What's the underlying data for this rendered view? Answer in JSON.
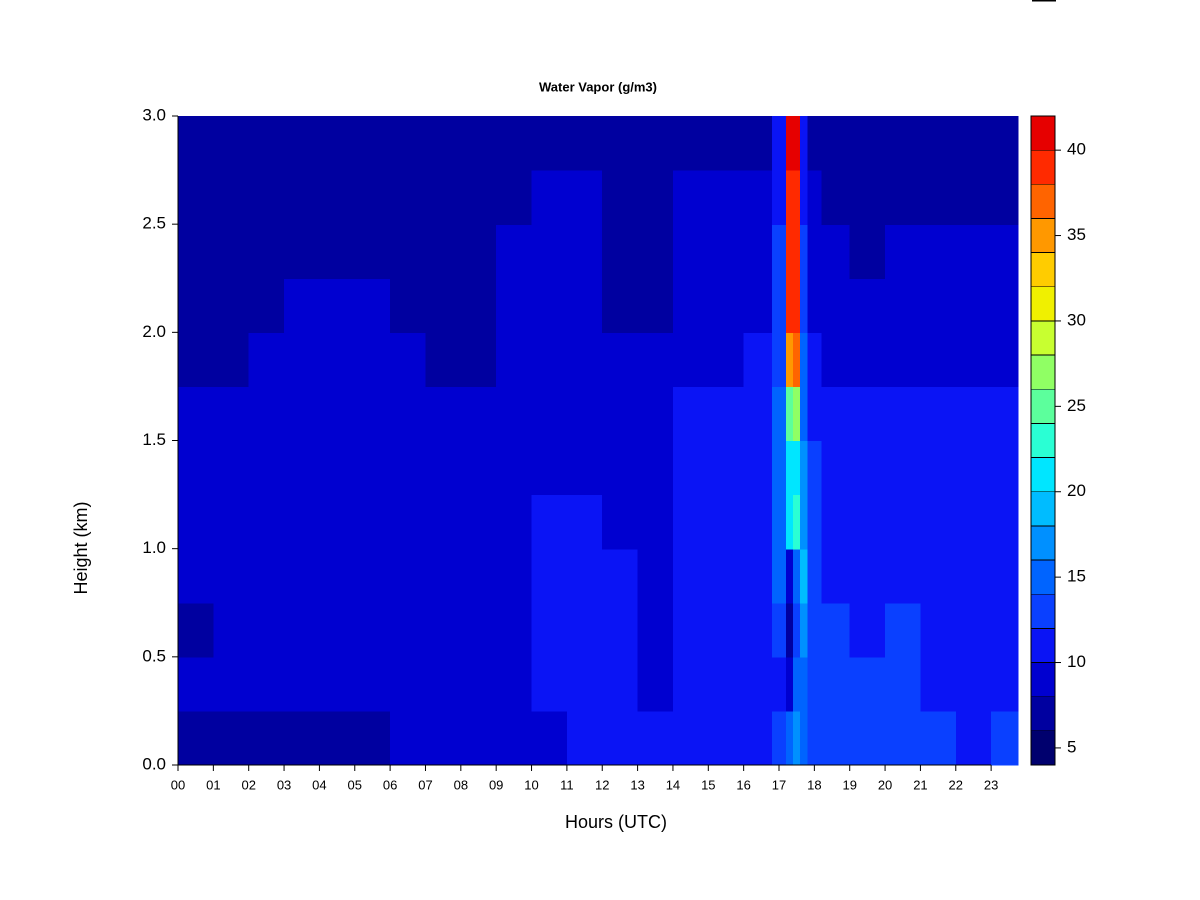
{
  "chart_data": {
    "type": "filled-contour",
    "title": "Water Vapor (g/m3)",
    "x_label": "Hours (UTC)",
    "y_label": "Height (km)",
    "xlim": [
      0,
      23.76
    ],
    "ylim": [
      0,
      3.0
    ],
    "xticks": [
      {
        "value": 0,
        "label": "00"
      },
      {
        "value": 1,
        "label": "01"
      },
      {
        "value": 2,
        "label": "02"
      },
      {
        "value": 3,
        "label": "03"
      },
      {
        "value": 4,
        "label": "04"
      },
      {
        "value": 5,
        "label": "05"
      },
      {
        "value": 6,
        "label": "06"
      },
      {
        "value": 7,
        "label": "07"
      },
      {
        "value": 8,
        "label": "08"
      },
      {
        "value": 9,
        "label": "09"
      },
      {
        "value": 10,
        "label": "10"
      },
      {
        "value": 11,
        "label": "11"
      },
      {
        "value": 12,
        "label": "12"
      },
      {
        "value": 13,
        "label": "13"
      },
      {
        "value": 14,
        "label": "14"
      },
      {
        "value": 15,
        "label": "15"
      },
      {
        "value": 16,
        "label": "16"
      },
      {
        "value": 17,
        "label": "17"
      },
      {
        "value": 18,
        "label": "18"
      },
      {
        "value": 19,
        "label": "19"
      },
      {
        "value": 20,
        "label": "20"
      },
      {
        "value": 21,
        "label": "21"
      },
      {
        "value": 22,
        "label": "22"
      },
      {
        "value": 23,
        "label": "23"
      }
    ],
    "yticks": [
      {
        "value": 0,
        "label": "0.0"
      },
      {
        "value": 0.5,
        "label": "0.5"
      },
      {
        "value": 1,
        "label": "1.0"
      },
      {
        "value": 1.5,
        "label": "1.5"
      },
      {
        "value": 2,
        "label": "2.0"
      },
      {
        "value": 2.5,
        "label": "2.5"
      },
      {
        "value": 3,
        "label": "3.0"
      }
    ],
    "xbins": [
      0,
      1,
      2,
      3,
      4,
      5,
      6,
      7,
      8,
      9,
      10,
      11,
      12,
      13,
      14,
      15,
      16,
      16.8,
      17.2,
      17.4,
      17.6,
      17.8,
      18.2,
      19,
      20,
      21,
      22,
      23,
      23.76
    ],
    "ybins": [
      0,
      0.25,
      0.5,
      0.75,
      1.0,
      1.25,
      1.5,
      1.75,
      2.0,
      2.25,
      2.5,
      2.75,
      3.0
    ],
    "z": [
      [
        7,
        7,
        7,
        7,
        7,
        7,
        9,
        9,
        9,
        9,
        9,
        11,
        11,
        11,
        11,
        11,
        11,
        13,
        15,
        16,
        14,
        13,
        12,
        12,
        12,
        12,
        11,
        12
      ],
      [
        8,
        8,
        9,
        9,
        9,
        9,
        9,
        9,
        9,
        9,
        11,
        11,
        11,
        9,
        11,
        11,
        11,
        11,
        9,
        14,
        15,
        12,
        12,
        12,
        12,
        11,
        10,
        11
      ],
      [
        7,
        8,
        9,
        9,
        9,
        9,
        9,
        9,
        9,
        9,
        11,
        11,
        11,
        9,
        11,
        11,
        11,
        13,
        7,
        12,
        16,
        12,
        12,
        11,
        12,
        11,
        10,
        11
      ],
      [
        9,
        9,
        9,
        9,
        9,
        9,
        9,
        9,
        9,
        9,
        11,
        11,
        11,
        9,
        11,
        11,
        11,
        14,
        8,
        15,
        18,
        13,
        11,
        11,
        11,
        11,
        10,
        11
      ],
      [
        9,
        9,
        9,
        9,
        9,
        9,
        9,
        9,
        9,
        9,
        10,
        10,
        9,
        9,
        10,
        10,
        11,
        15,
        20,
        22,
        17,
        12,
        10,
        11,
        10,
        10,
        10,
        10
      ],
      [
        9,
        9,
        9,
        9,
        9,
        9,
        9,
        9,
        9,
        9,
        9,
        9,
        9,
        9,
        10,
        10,
        11,
        14,
        20,
        21,
        16,
        12,
        10,
        10,
        10,
        10,
        10,
        10
      ],
      [
        9,
        9,
        9,
        9,
        9,
        9,
        9,
        9,
        9,
        9,
        9,
        9,
        9,
        9,
        10,
        10,
        10,
        14,
        25,
        27,
        15,
        11,
        10,
        10,
        10,
        10,
        10,
        10
      ],
      [
        7,
        7,
        8,
        9,
        9,
        9,
        9,
        7,
        7,
        8,
        9,
        9,
        8,
        8,
        9,
        9,
        10,
        13,
        34,
        36,
        14,
        10,
        9,
        9,
        9,
        9,
        9,
        9
      ],
      [
        7,
        7,
        7,
        8,
        8,
        8,
        7,
        7,
        7,
        8,
        9,
        8,
        7,
        7,
        9,
        9,
        9,
        12,
        38,
        39,
        12,
        9,
        9,
        9,
        9,
        9,
        9,
        9
      ],
      [
        7,
        7,
        7,
        7,
        7,
        7,
        7,
        7,
        7,
        8,
        9,
        8,
        7,
        7,
        9,
        9,
        9,
        12,
        38,
        38,
        12,
        9,
        8,
        7,
        8,
        8,
        8,
        8
      ],
      [
        6,
        6,
        7,
        7,
        7,
        7,
        6,
        6,
        6,
        7,
        8,
        8,
        7,
        7,
        8,
        8,
        8,
        11,
        39,
        39,
        11,
        8,
        7,
        7,
        7,
        7,
        7,
        7
      ],
      [
        6,
        6,
        6,
        6,
        6,
        6,
        6,
        6,
        6,
        6,
        7,
        7,
        6,
        6,
        7,
        7,
        7,
        10,
        41,
        41,
        10,
        7,
        7,
        6,
        7,
        7,
        6,
        7
      ]
    ],
    "levels": [
      4,
      6,
      8,
      10,
      12,
      14,
      16,
      18,
      20,
      22,
      24,
      26,
      28,
      30,
      32,
      34,
      36,
      38,
      40,
      42
    ],
    "colors": [
      "#00006e",
      "#0000a0",
      "#0000d0",
      "#0a14f5",
      "#0a40ff",
      "#0064ff",
      "#0090ff",
      "#00bcff",
      "#00e6ff",
      "#2affd4",
      "#5cff9c",
      "#90ff64",
      "#c8ff30",
      "#f0f000",
      "#ffcc00",
      "#ff9800",
      "#ff6400",
      "#ff2a00",
      "#e60000",
      "#b00000"
    ],
    "cbticks": [
      5,
      10,
      15,
      20,
      25,
      30,
      35,
      40
    ]
  }
}
